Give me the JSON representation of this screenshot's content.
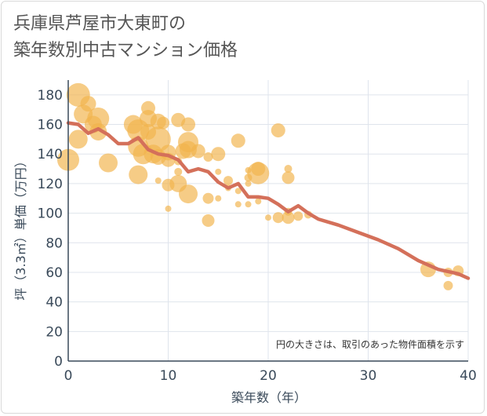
{
  "chart_data": {
    "type": "scatter",
    "title_lines": [
      "兵庫県芦屋市大東町の",
      "築年数別中古マンション価格"
    ],
    "xlabel": "築年数（年）",
    "ylabel": "坪（3.3㎡）単価（万円）",
    "xlim": [
      0,
      40
    ],
    "ylim": [
      0,
      190
    ],
    "xticks": [
      "0",
      "10",
      "20",
      "30",
      "40"
    ],
    "yticks": [
      "0",
      "20",
      "40",
      "60",
      "80",
      "100",
      "120",
      "140",
      "160",
      "180"
    ],
    "grid": true,
    "note": "円の大きさは、取引のあった物件面積を示す",
    "colors": {
      "bubble": "#f2b44c",
      "trend": "#d4705a",
      "grid": "#dfe4ec",
      "axis": "#3a4a5a"
    },
    "series": [
      {
        "type": "scatter",
        "points": [
          {
            "x": 0,
            "y": 136,
            "s": 14
          },
          {
            "x": 1,
            "y": 180,
            "s": 15
          },
          {
            "x": 1,
            "y": 150,
            "s": 12
          },
          {
            "x": 1.5,
            "y": 167,
            "s": 12
          },
          {
            "x": 2,
            "y": 174,
            "s": 10
          },
          {
            "x": 2.5,
            "y": 160,
            "s": 11
          },
          {
            "x": 3,
            "y": 164,
            "s": 14
          },
          {
            "x": 3,
            "y": 155,
            "s": 11
          },
          {
            "x": 4,
            "y": 134,
            "s": 12
          },
          {
            "x": 6.5,
            "y": 160,
            "s": 12
          },
          {
            "x": 7,
            "y": 156,
            "s": 14
          },
          {
            "x": 7,
            "y": 145,
            "s": 13
          },
          {
            "x": 7,
            "y": 126,
            "s": 12
          },
          {
            "x": 7.5,
            "y": 140,
            "s": 13
          },
          {
            "x": 8,
            "y": 171,
            "s": 9
          },
          {
            "x": 8,
            "y": 164,
            "s": 11
          },
          {
            "x": 8,
            "y": 155,
            "s": 10
          },
          {
            "x": 8.5,
            "y": 140,
            "s": 12
          },
          {
            "x": 9,
            "y": 162,
            "s": 10
          },
          {
            "x": 9,
            "y": 150,
            "s": 16
          },
          {
            "x": 9,
            "y": 138,
            "s": 10
          },
          {
            "x": 9,
            "y": 122,
            "s": 4
          },
          {
            "x": 9.5,
            "y": 161,
            "s": 8
          },
          {
            "x": 10,
            "y": 141,
            "s": 10
          },
          {
            "x": 10,
            "y": 136,
            "s": 9
          },
          {
            "x": 10,
            "y": 119,
            "s": 8
          },
          {
            "x": 10,
            "y": 103,
            "s": 4
          },
          {
            "x": 11,
            "y": 163,
            "s": 9
          },
          {
            "x": 11,
            "y": 135,
            "s": 5
          },
          {
            "x": 11,
            "y": 128,
            "s": 5
          },
          {
            "x": 11,
            "y": 120,
            "s": 11
          },
          {
            "x": 11.5,
            "y": 142,
            "s": 10
          },
          {
            "x": 12,
            "y": 160,
            "s": 9
          },
          {
            "x": 12,
            "y": 148,
            "s": 13
          },
          {
            "x": 12,
            "y": 143,
            "s": 11
          },
          {
            "x": 12,
            "y": 113,
            "s": 12
          },
          {
            "x": 13,
            "y": 142,
            "s": 9
          },
          {
            "x": 14,
            "y": 138,
            "s": 6
          },
          {
            "x": 14,
            "y": 110,
            "s": 7
          },
          {
            "x": 14,
            "y": 95,
            "s": 8
          },
          {
            "x": 15,
            "y": 140,
            "s": 9
          },
          {
            "x": 15,
            "y": 128,
            "s": 4
          },
          {
            "x": 15,
            "y": 110,
            "s": 4
          },
          {
            "x": 16,
            "y": 122,
            "s": 6
          },
          {
            "x": 16,
            "y": 117,
            "s": 4
          },
          {
            "x": 17,
            "y": 149,
            "s": 9
          },
          {
            "x": 17,
            "y": 115,
            "s": 4
          },
          {
            "x": 17,
            "y": 106,
            "s": 4
          },
          {
            "x": 18,
            "y": 129,
            "s": 4
          },
          {
            "x": 18,
            "y": 124,
            "s": 5
          },
          {
            "x": 18,
            "y": 120,
            "s": 4
          },
          {
            "x": 18,
            "y": 106,
            "s": 4
          },
          {
            "x": 19,
            "y": 130,
            "s": 9
          },
          {
            "x": 19,
            "y": 127,
            "s": 14
          },
          {
            "x": 19,
            "y": 108,
            "s": 4
          },
          {
            "x": 20,
            "y": 97,
            "s": 4
          },
          {
            "x": 21,
            "y": 156,
            "s": 9
          },
          {
            "x": 21,
            "y": 97,
            "s": 7
          },
          {
            "x": 22,
            "y": 130,
            "s": 5
          },
          {
            "x": 22,
            "y": 124,
            "s": 8
          },
          {
            "x": 22,
            "y": 101,
            "s": 5
          },
          {
            "x": 22,
            "y": 97,
            "s": 8
          },
          {
            "x": 23,
            "y": 98,
            "s": 6
          },
          {
            "x": 24,
            "y": 99,
            "s": 5
          },
          {
            "x": 36,
            "y": 62,
            "s": 10
          },
          {
            "x": 38,
            "y": 60,
            "s": 6
          },
          {
            "x": 38,
            "y": 51,
            "s": 6
          },
          {
            "x": 39,
            "y": 61,
            "s": 7
          }
        ]
      },
      {
        "type": "line",
        "points": [
          {
            "x": 0,
            "y": 161
          },
          {
            "x": 1,
            "y": 160
          },
          {
            "x": 2,
            "y": 154
          },
          {
            "x": 3,
            "y": 157
          },
          {
            "x": 4,
            "y": 153
          },
          {
            "x": 5,
            "y": 147
          },
          {
            "x": 6,
            "y": 147
          },
          {
            "x": 7,
            "y": 151
          },
          {
            "x": 8,
            "y": 143
          },
          {
            "x": 9,
            "y": 140
          },
          {
            "x": 10,
            "y": 139
          },
          {
            "x": 11,
            "y": 136
          },
          {
            "x": 12,
            "y": 128
          },
          {
            "x": 13,
            "y": 130
          },
          {
            "x": 14,
            "y": 128
          },
          {
            "x": 15,
            "y": 121
          },
          {
            "x": 16,
            "y": 117
          },
          {
            "x": 17,
            "y": 120
          },
          {
            "x": 18,
            "y": 111
          },
          {
            "x": 19,
            "y": 111
          },
          {
            "x": 20,
            "y": 110
          },
          {
            "x": 21,
            "y": 106
          },
          {
            "x": 22,
            "y": 101
          },
          {
            "x": 23,
            "y": 105
          },
          {
            "x": 24,
            "y": 100
          },
          {
            "x": 25,
            "y": 96
          },
          {
            "x": 27,
            "y": 92
          },
          {
            "x": 29,
            "y": 87
          },
          {
            "x": 31,
            "y": 82
          },
          {
            "x": 33,
            "y": 76
          },
          {
            "x": 35,
            "y": 68
          },
          {
            "x": 37,
            "y": 62
          },
          {
            "x": 39,
            "y": 59
          },
          {
            "x": 40,
            "y": 56
          }
        ]
      }
    ]
  }
}
